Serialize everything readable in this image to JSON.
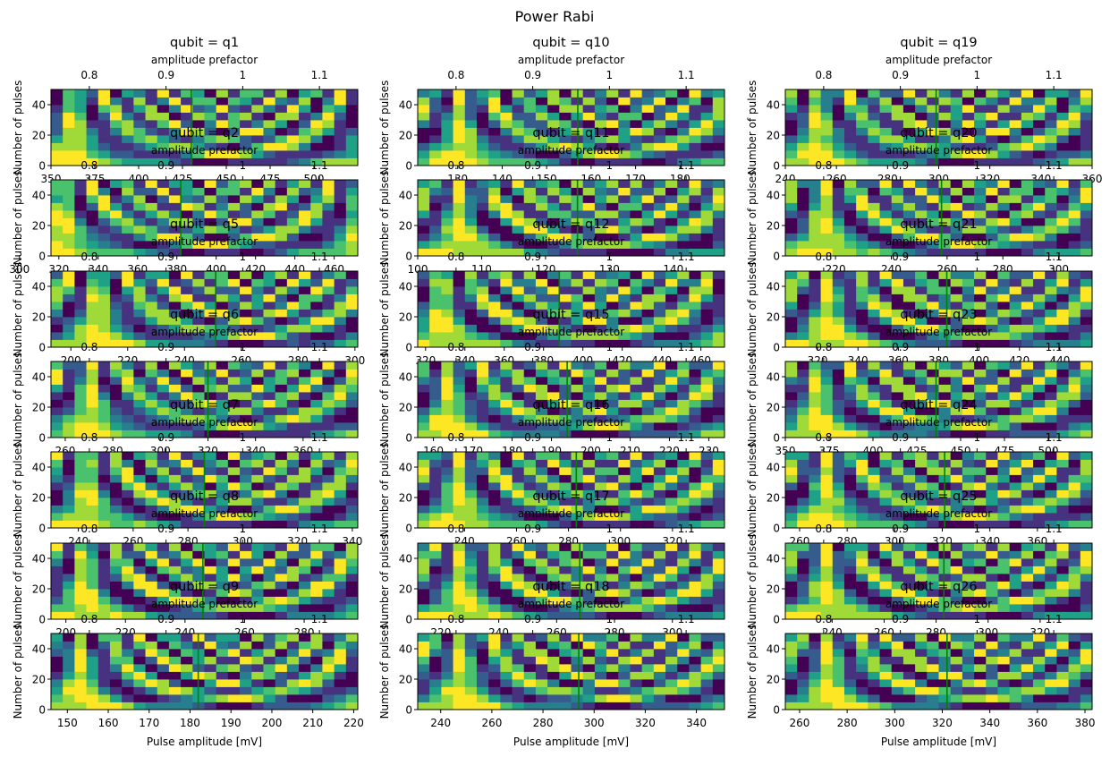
{
  "figure": {
    "title": "Power Rabi",
    "colormap": "viridis",
    "line_color": "#008000",
    "palette": [
      "#440154",
      "#46327e",
      "#365c8d",
      "#277f8e",
      "#1fa187",
      "#4ac16d",
      "#a0da39",
      "#fde725"
    ]
  },
  "chart_data": [
    {
      "type": "heatmap",
      "panel": "q1",
      "title": "qubit = q1",
      "top_xlabel": "amplitude prefactor",
      "top_ticks": [
        0.8,
        0.9,
        1.0,
        1.1
      ],
      "top_xlim": [
        0.75,
        1.15
      ],
      "ylabel": "Number of pulses",
      "yticks": [
        0,
        20,
        40
      ],
      "ylim": [
        0,
        50
      ],
      "xlabel": "",
      "bottom_ticks": [
        350,
        375,
        400,
        425,
        450,
        475,
        500
      ],
      "bottom_xlim": [
        350,
        525
      ],
      "marker": 430
    },
    {
      "type": "heatmap",
      "panel": "q2",
      "title": "qubit = q2",
      "top_xlabel": "amplitude prefactor",
      "top_ticks": [
        0.8,
        0.9,
        1.0,
        1.1
      ],
      "top_xlim": [
        0.75,
        1.15
      ],
      "ylabel": "Number of pulses",
      "yticks": [
        0,
        20,
        40
      ],
      "ylim": [
        0,
        50
      ],
      "xlabel": "",
      "bottom_ticks": [
        300,
        320,
        340,
        360,
        380,
        400,
        420,
        440,
        460
      ],
      "bottom_xlim": [
        316,
        472
      ],
      "marker": 382
    },
    {
      "type": "heatmap",
      "panel": "q5",
      "title": "qubit = q5",
      "top_xlabel": "amplitude prefactor",
      "top_ticks": [
        0.8,
        0.9,
        1.0,
        1.1
      ],
      "top_xlim": [
        0.75,
        1.15
      ],
      "ylabel": "Number of pulses",
      "yticks": [
        0,
        20,
        40
      ],
      "ylim": [
        0,
        50
      ],
      "xlabel": "",
      "bottom_ticks": [
        200,
        220,
        240,
        260,
        280,
        300
      ],
      "bottom_xlim": [
        193,
        301
      ],
      "marker": 251
    },
    {
      "type": "heatmap",
      "panel": "q6",
      "title": "qubit = q6",
      "top_xlabel": "amplitude prefactor",
      "top_ticks": [
        0.8,
        0.9,
        1.0,
        1.1
      ],
      "top_xlim": [
        0.75,
        1.15
      ],
      "ylabel": "Number of pulses",
      "yticks": [
        0,
        20,
        40
      ],
      "ylim": [
        0,
        50
      ],
      "xlabel": "",
      "bottom_ticks": [
        260,
        280,
        300,
        320,
        340,
        360
      ],
      "bottom_xlim": [
        254,
        383
      ],
      "marker": 320
    },
    {
      "type": "heatmap",
      "panel": "q7",
      "title": "qubit = q7",
      "top_xlabel": "amplitude prefactor",
      "top_ticks": [
        0.8,
        0.9,
        1.0,
        1.1
      ],
      "top_xlim": [
        0.75,
        1.15
      ],
      "ylabel": "Number of pulses",
      "yticks": [
        0,
        20,
        40
      ],
      "ylim": [
        0,
        50
      ],
      "xlabel": "",
      "bottom_ticks": [
        240,
        260,
        280,
        300,
        320,
        340
      ],
      "bottom_xlim": [
        230,
        342
      ],
      "marker": 286
    },
    {
      "type": "heatmap",
      "panel": "q8",
      "title": "qubit = q8",
      "top_xlabel": "amplitude prefactor",
      "top_ticks": [
        0.8,
        0.9,
        1.0,
        1.1
      ],
      "top_xlim": [
        0.75,
        1.15
      ],
      "ylabel": "Number of pulses",
      "yticks": [
        0,
        20,
        40
      ],
      "ylim": [
        0,
        50
      ],
      "xlabel": "",
      "bottom_ticks": [
        200,
        220,
        240,
        260,
        280
      ],
      "bottom_xlim": [
        195,
        298
      ],
      "marker": 246
    },
    {
      "type": "heatmap",
      "panel": "q9",
      "title": "qubit = q9",
      "top_xlabel": "amplitude prefactor",
      "top_ticks": [
        0.8,
        0.9,
        1.0,
        1.1
      ],
      "top_xlim": [
        0.75,
        1.15
      ],
      "ylabel": "Number of pulses",
      "yticks": [
        0,
        20,
        40
      ],
      "ylim": [
        0,
        50
      ],
      "xlabel": "Pulse amplitude [mV]",
      "bottom_ticks": [
        150,
        160,
        170,
        180,
        190,
        200,
        210,
        220
      ],
      "bottom_xlim": [
        146,
        221
      ],
      "marker": 182
    },
    {
      "type": "heatmap",
      "panel": "q10",
      "title": "qubit = q10",
      "top_xlabel": "amplitude prefactor",
      "top_ticks": [
        0.8,
        0.9,
        1.0,
        1.1
      ],
      "top_xlim": [
        0.75,
        1.15
      ],
      "ylabel": "Number of pulses",
      "yticks": [
        0,
        20,
        40
      ],
      "ylim": [
        0,
        50
      ],
      "xlabel": "",
      "bottom_ticks": [
        130,
        140,
        150,
        160,
        170,
        180
      ],
      "bottom_xlim": [
        121,
        190
      ],
      "marker": 157
    },
    {
      "type": "heatmap",
      "panel": "q11",
      "title": "qubit = q11",
      "top_xlabel": "amplitude prefactor",
      "top_ticks": [
        0.8,
        0.9,
        1.0,
        1.1
      ],
      "top_xlim": [
        0.75,
        1.15
      ],
      "ylabel": "Number of pulses",
      "yticks": [
        0,
        20,
        40
      ],
      "ylim": [
        0,
        50
      ],
      "xlabel": "",
      "bottom_ticks": [
        100,
        110,
        120,
        130,
        140
      ],
      "bottom_xlim": [
        100,
        148
      ],
      "marker": 125
    },
    {
      "type": "heatmap",
      "panel": "q12",
      "title": "qubit = q12",
      "top_xlabel": "amplitude prefactor",
      "top_ticks": [
        0.8,
        0.9,
        1.0,
        1.1
      ],
      "top_xlim": [
        0.75,
        1.15
      ],
      "ylabel": "Number of pulses",
      "yticks": [
        0,
        20,
        40
      ],
      "ylim": [
        0,
        50
      ],
      "xlabel": "",
      "bottom_ticks": [
        320,
        340,
        360,
        380,
        400,
        420,
        440,
        460
      ],
      "bottom_xlim": [
        316,
        472
      ],
      "marker": 388
    },
    {
      "type": "heatmap",
      "panel": "q15",
      "title": "qubit = q15",
      "top_xlabel": "amplitude prefactor",
      "top_ticks": [
        0.8,
        0.9,
        1.0,
        1.1
      ],
      "top_xlim": [
        0.75,
        1.15
      ],
      "ylabel": "Number of pulses",
      "yticks": [
        0,
        20,
        40
      ],
      "ylim": [
        0,
        50
      ],
      "xlabel": "",
      "bottom_ticks": [
        160,
        170,
        180,
        190,
        200,
        210,
        220,
        230
      ],
      "bottom_xlim": [
        156,
        234
      ],
      "marker": 194
    },
    {
      "type": "heatmap",
      "panel": "q16",
      "title": "qubit = q16",
      "top_xlabel": "amplitude prefactor",
      "top_ticks": [
        0.8,
        0.9,
        1.0,
        1.1
      ],
      "top_xlim": [
        0.75,
        1.15
      ],
      "ylabel": "Number of pulses",
      "yticks": [
        0,
        20,
        40
      ],
      "ylim": [
        0,
        50
      ],
      "xlabel": "",
      "bottom_ticks": [
        240,
        260,
        280,
        300,
        320
      ],
      "bottom_xlim": [
        222,
        340
      ],
      "marker": 283
    },
    {
      "type": "heatmap",
      "panel": "q17",
      "title": "qubit = q17",
      "top_xlabel": "amplitude prefactor",
      "top_ticks": [
        0.8,
        0.9,
        1.0,
        1.1
      ],
      "top_xlim": [
        0.75,
        1.15
      ],
      "ylabel": "Number of pulses",
      "yticks": [
        0,
        20,
        40
      ],
      "ylim": [
        0,
        50
      ],
      "xlabel": "",
      "bottom_ticks": [
        220,
        240,
        260,
        280,
        300
      ],
      "bottom_xlim": [
        212,
        318
      ],
      "marker": 268
    },
    {
      "type": "heatmap",
      "panel": "q18",
      "title": "qubit = q18",
      "top_xlabel": "amplitude prefactor",
      "top_ticks": [
        0.8,
        0.9,
        1.0,
        1.1
      ],
      "top_xlim": [
        0.75,
        1.15
      ],
      "ylabel": "Number of pulses",
      "yticks": [
        0,
        20,
        40
      ],
      "ylim": [
        0,
        50
      ],
      "xlabel": "Pulse amplitude [mV]",
      "bottom_ticks": [
        240,
        260,
        280,
        300,
        320,
        340
      ],
      "bottom_xlim": [
        231,
        351
      ],
      "marker": 294
    },
    {
      "type": "heatmap",
      "panel": "q19",
      "title": "qubit = q19",
      "top_xlabel": "amplitude prefactor",
      "top_ticks": [
        0.8,
        0.9,
        1.0,
        1.1
      ],
      "top_xlim": [
        0.75,
        1.15
      ],
      "ylabel": "Number of pulses",
      "yticks": [
        0,
        20,
        40
      ],
      "ylim": [
        0,
        50
      ],
      "xlabel": "",
      "bottom_ticks": [
        240,
        260,
        280,
        300,
        320,
        340,
        360
      ],
      "bottom_xlim": [
        240,
        360
      ],
      "marker": 299
    },
    {
      "type": "heatmap",
      "panel": "q20",
      "title": "qubit = q20",
      "top_xlabel": "amplitude prefactor",
      "top_ticks": [
        0.8,
        0.9,
        1.0,
        1.1
      ],
      "top_xlim": [
        0.75,
        1.15
      ],
      "ylabel": "Number of pulses",
      "yticks": [
        0,
        20,
        40
      ],
      "ylim": [
        0,
        50
      ],
      "xlabel": "",
      "bottom_ticks": [
        220,
        240,
        260,
        280,
        300
      ],
      "bottom_xlim": [
        202,
        312
      ],
      "marker": 258
    },
    {
      "type": "heatmap",
      "panel": "q21",
      "title": "qubit = q21",
      "top_xlabel": "amplitude prefactor",
      "top_ticks": [
        0.8,
        0.9,
        1.0,
        1.1
      ],
      "top_xlim": [
        0.75,
        1.15
      ],
      "ylabel": "Number of pulses",
      "yticks": [
        0,
        20,
        40
      ],
      "ylim": [
        0,
        50
      ],
      "xlabel": "",
      "bottom_ticks": [
        320,
        340,
        360,
        380,
        400,
        420,
        440
      ],
      "bottom_xlim": [
        304,
        456
      ],
      "marker": 384
    },
    {
      "type": "heatmap",
      "panel": "q23",
      "title": "qubit = q23",
      "top_xlabel": "amplitude prefactor",
      "top_ticks": [
        0.8,
        0.9,
        1.0,
        1.1
      ],
      "top_xlim": [
        0.75,
        1.15
      ],
      "ylabel": "Number of pulses",
      "yticks": [
        0,
        20,
        40
      ],
      "ylim": [
        0,
        50
      ],
      "xlabel": "",
      "bottom_ticks": [
        350,
        375,
        400,
        425,
        450,
        475,
        500
      ],
      "bottom_xlim": [
        350,
        525
      ],
      "marker": 436
    },
    {
      "type": "heatmap",
      "panel": "q24",
      "title": "qubit = q24",
      "top_xlabel": "amplitude prefactor",
      "top_ticks": [
        0.8,
        0.9,
        1.0,
        1.1
      ],
      "top_xlim": [
        0.75,
        1.15
      ],
      "ylabel": "Number of pulses",
      "yticks": [
        0,
        20,
        40
      ],
      "ylim": [
        0,
        50
      ],
      "xlabel": "",
      "bottom_ticks": [
        260,
        280,
        300,
        320,
        340,
        360
      ],
      "bottom_xlim": [
        254,
        383
      ],
      "marker": 321
    },
    {
      "type": "heatmap",
      "panel": "q25",
      "title": "qubit = q25",
      "top_xlabel": "amplitude prefactor",
      "top_ticks": [
        0.8,
        0.9,
        1.0,
        1.1
      ],
      "top_xlim": [
        0.75,
        1.15
      ],
      "ylabel": "Number of pulses",
      "yticks": [
        0,
        20,
        40
      ],
      "ylim": [
        0,
        50
      ],
      "xlabel": "",
      "bottom_ticks": [
        240,
        260,
        280,
        300,
        320
      ],
      "bottom_xlim": [
        222,
        340
      ],
      "marker": 283
    },
    {
      "type": "heatmap",
      "panel": "q26",
      "title": "qubit = q26",
      "top_xlabel": "amplitude prefactor",
      "top_ticks": [
        0.8,
        0.9,
        1.0,
        1.1
      ],
      "top_xlim": [
        0.75,
        1.15
      ],
      "ylabel": "Number of pulses",
      "yticks": [
        0,
        20,
        40
      ],
      "ylim": [
        0,
        50
      ],
      "xlabel": "Pulse amplitude [mV]",
      "bottom_ticks": [
        260,
        280,
        300,
        320,
        340,
        360,
        380
      ],
      "bottom_xlim": [
        254,
        383
      ],
      "marker": 322
    }
  ]
}
